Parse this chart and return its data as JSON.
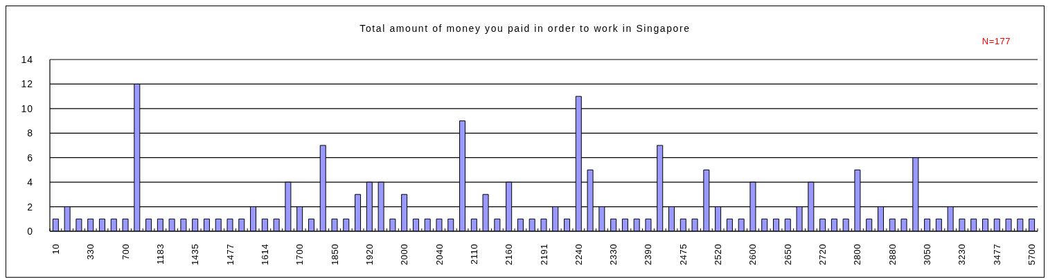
{
  "chart_data": {
    "type": "bar",
    "title": "Total amount of money you paid in order to work in Singapore",
    "annotations": [
      "N=177"
    ],
    "categories": [
      "10",
      null,
      null,
      "330",
      null,
      null,
      "700",
      null,
      null,
      "1183",
      null,
      null,
      "1435",
      null,
      null,
      "1477",
      null,
      null,
      "1614",
      null,
      null,
      "1700",
      null,
      null,
      "1850",
      null,
      null,
      "1920",
      null,
      null,
      "2000",
      null,
      null,
      "2040",
      null,
      null,
      "2110",
      null,
      null,
      "2160",
      null,
      null,
      "2191",
      null,
      null,
      "2240",
      null,
      null,
      "2330",
      null,
      null,
      "2390",
      null,
      null,
      "2475",
      null,
      null,
      "2520",
      null,
      null,
      "2600",
      null,
      null,
      "2650",
      null,
      null,
      "2720",
      null,
      null,
      "2800",
      null,
      null,
      "2880",
      null,
      null,
      "3050",
      null,
      null,
      "3230",
      null,
      null,
      "3477",
      null,
      null,
      "5700"
    ],
    "values": [
      1,
      2,
      1,
      1,
      1,
      1,
      1,
      12,
      1,
      1,
      1,
      1,
      1,
      1,
      1,
      1,
      1,
      2,
      1,
      1,
      4,
      2,
      1,
      7,
      1,
      1,
      3,
      4,
      4,
      1,
      3,
      1,
      1,
      1,
      1,
      9,
      1,
      3,
      1,
      4,
      1,
      1,
      1,
      2,
      1,
      11,
      5,
      2,
      1,
      1,
      1,
      1,
      7,
      2,
      1,
      1,
      5,
      2,
      1,
      1,
      4,
      1,
      1,
      1,
      2,
      4,
      1,
      1,
      1,
      5,
      1,
      2,
      1,
      1,
      6,
      1,
      1,
      2,
      1,
      1,
      1,
      1,
      1,
      1,
      1
    ],
    "color": "#9999ff",
    "ylim": [
      0,
      14
    ],
    "yticks": [
      0,
      2,
      4,
      6,
      8,
      10,
      12,
      14
    ],
    "grid": "y"
  }
}
